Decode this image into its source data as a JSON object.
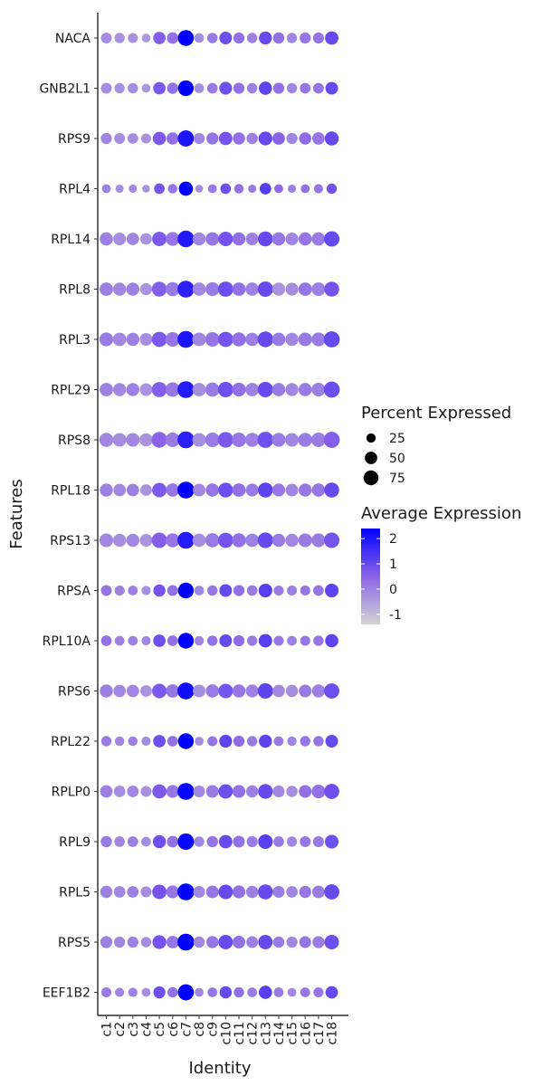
{
  "chart_data": {
    "type": "dot",
    "xlabel": "Identity",
    "ylabel": "Features",
    "clusters": [
      "c1",
      "c2",
      "c3",
      "c4",
      "c5",
      "c6",
      "c7",
      "c8",
      "c9",
      "c10",
      "c11",
      "c12",
      "c13",
      "c14",
      "c15",
      "c16",
      "c17",
      "c18"
    ],
    "features": [
      "NACA",
      "GNB2L1",
      "RPS9",
      "RPL4",
      "RPL14",
      "RPL8",
      "RPL3",
      "RPL29",
      "RPS8",
      "RPL18",
      "RPS13",
      "RPSA",
      "RPL10A",
      "RPS6",
      "RPL22",
      "RPLP0",
      "RPL9",
      "RPL5",
      "RPS5",
      "EEF1B2"
    ],
    "size_legend": {
      "title": "Percent Expressed",
      "values": [
        25,
        50,
        75
      ]
    },
    "color_legend": {
      "title": "Average Expression",
      "ticks": [
        -1,
        0,
        1,
        2
      ],
      "range": [
        -1.4,
        2.4
      ],
      "low_color": "#d3d3d3",
      "high_color": "#0000ff"
    },
    "pct_expressed": [
      [
        36,
        32,
        30,
        22,
        50,
        42,
        88,
        27,
        33,
        52,
        38,
        32,
        55,
        40,
        32,
        38,
        38,
        60
      ],
      [
        36,
        32,
        32,
        22,
        50,
        40,
        85,
        28,
        34,
        54,
        38,
        32,
        58,
        38,
        32,
        35,
        35,
        52
      ],
      [
        38,
        36,
        35,
        30,
        58,
        48,
        92,
        38,
        46,
        60,
        48,
        40,
        64,
        50,
        38,
        48,
        50,
        65
      ],
      [
        22,
        18,
        18,
        16,
        34,
        26,
        68,
        16,
        22,
        34,
        26,
        18,
        42,
        22,
        18,
        22,
        24,
        32
      ],
      [
        58,
        52,
        50,
        42,
        72,
        64,
        98,
        56,
        60,
        72,
        56,
        52,
        76,
        58,
        52,
        58,
        60,
        82
      ],
      [
        60,
        56,
        56,
        46,
        76,
        66,
        100,
        58,
        64,
        80,
        60,
        58,
        82,
        56,
        54,
        60,
        62,
        76
      ],
      [
        64,
        60,
        56,
        52,
        80,
        70,
        100,
        62,
        70,
        80,
        66,
        60,
        86,
        60,
        56,
        62,
        64,
        90
      ],
      [
        60,
        56,
        56,
        52,
        80,
        70,
        100,
        60,
        68,
        82,
        64,
        60,
        82,
        58,
        56,
        58,
        62,
        90
      ],
      [
        66,
        62,
        62,
        56,
        86,
        72,
        100,
        62,
        72,
        84,
        70,
        66,
        90,
        64,
        62,
        66,
        70,
        90
      ],
      [
        56,
        50,
        50,
        42,
        72,
        58,
        100,
        52,
        58,
        74,
        60,
        54,
        76,
        54,
        52,
        56,
        58,
        76
      ],
      [
        62,
        56,
        56,
        52,
        82,
        66,
        100,
        58,
        68,
        80,
        66,
        60,
        84,
        56,
        56,
        62,
        64,
        82
      ],
      [
        36,
        30,
        28,
        24,
        48,
        36,
        86,
        28,
        32,
        52,
        38,
        34,
        62,
        30,
        30,
        30,
        34,
        62
      ],
      [
        34,
        28,
        28,
        24,
        50,
        34,
        86,
        26,
        32,
        52,
        38,
        32,
        60,
        30,
        28,
        30,
        32,
        58
      ],
      [
        56,
        50,
        50,
        42,
        72,
        60,
        100,
        52,
        58,
        72,
        56,
        54,
        82,
        50,
        48,
        52,
        56,
        80
      ],
      [
        32,
        26,
        26,
        24,
        50,
        34,
        86,
        22,
        30,
        54,
        38,
        32,
        56,
        28,
        26,
        32,
        32,
        52
      ],
      [
        50,
        42,
        42,
        36,
        68,
        54,
        100,
        44,
        52,
        70,
        54,
        48,
        74,
        44,
        40,
        52,
        62,
        78
      ],
      [
        40,
        34,
        34,
        28,
        56,
        42,
        94,
        32,
        40,
        60,
        44,
        38,
        72,
        34,
        32,
        36,
        38,
        62
      ],
      [
        48,
        42,
        42,
        36,
        70,
        54,
        100,
        44,
        50,
        72,
        54,
        48,
        76,
        44,
        42,
        46,
        50,
        78
      ],
      [
        46,
        38,
        38,
        32,
        64,
        50,
        100,
        40,
        48,
        70,
        52,
        44,
        70,
        40,
        38,
        44,
        46,
        72
      ],
      [
        30,
        24,
        24,
        22,
        46,
        32,
        90,
        22,
        28,
        48,
        32,
        28,
        58,
        28,
        22,
        28,
        30,
        50
      ]
    ],
    "avg_expression": [
      [
        -0.2,
        -0.3,
        -0.3,
        -0.4,
        0.6,
        0.3,
        2.4,
        -0.2,
        0.1,
        0.9,
        0.3,
        0.0,
        1.0,
        0.3,
        -0.1,
        0.2,
        0.2,
        1.0
      ],
      [
        -0.2,
        -0.3,
        -0.2,
        -0.4,
        0.7,
        0.3,
        2.4,
        -0.2,
        0.1,
        0.9,
        0.3,
        0.0,
        1.1,
        0.3,
        -0.1,
        0.2,
        0.2,
        1.0
      ],
      [
        -0.1,
        -0.2,
        -0.2,
        -0.3,
        0.7,
        0.3,
        2.0,
        -0.1,
        0.2,
        0.8,
        0.3,
        0.0,
        1.0,
        0.5,
        -0.1,
        0.4,
        0.2,
        1.0
      ],
      [
        0.0,
        -0.2,
        -0.1,
        -0.3,
        0.8,
        0.2,
        2.4,
        -0.2,
        0.1,
        0.9,
        0.3,
        0.1,
        1.2,
        0.4,
        0.0,
        0.3,
        0.2,
        0.8
      ],
      [
        0.0,
        -0.2,
        -0.1,
        -0.3,
        0.7,
        0.2,
        1.9,
        -0.1,
        0.2,
        0.8,
        0.3,
        0.0,
        1.0,
        0.2,
        -0.1,
        0.2,
        0.1,
        1.0
      ],
      [
        0.0,
        -0.1,
        0.0,
        -0.3,
        0.6,
        0.1,
        1.8,
        -0.1,
        0.1,
        0.9,
        0.3,
        0.0,
        1.0,
        -0.3,
        -0.2,
        0.2,
        0.0,
        0.8
      ],
      [
        0.1,
        -0.1,
        0.0,
        -0.2,
        0.7,
        0.2,
        2.0,
        -0.1,
        0.2,
        0.8,
        0.3,
        0.0,
        1.0,
        0.1,
        -0.1,
        0.1,
        0.1,
        1.0
      ],
      [
        0.0,
        -0.1,
        0.0,
        -0.3,
        0.6,
        0.2,
        1.9,
        -0.2,
        0.1,
        0.9,
        0.3,
        0.0,
        1.0,
        0.1,
        -0.1,
        0.1,
        0.0,
        0.9
      ],
      [
        -0.1,
        -0.2,
        -0.1,
        -0.3,
        0.5,
        0.1,
        1.8,
        -0.2,
        0.1,
        0.7,
        0.2,
        0.0,
        0.9,
        0.1,
        -0.1,
        0.1,
        0.1,
        0.6
      ],
      [
        0.0,
        -0.1,
        0.0,
        -0.3,
        0.7,
        0.2,
        2.4,
        -0.1,
        0.2,
        0.9,
        0.3,
        0.1,
        1.1,
        0.2,
        -0.1,
        0.2,
        0.2,
        1.0
      ],
      [
        -0.1,
        -0.2,
        -0.1,
        -0.3,
        0.6,
        0.2,
        1.9,
        -0.2,
        0.1,
        0.8,
        0.3,
        0.0,
        1.0,
        0.1,
        -0.1,
        0.1,
        0.1,
        0.8
      ],
      [
        0.2,
        0.0,
        0.0,
        -0.2,
        0.8,
        0.3,
        2.4,
        -0.1,
        0.2,
        1.0,
        0.3,
        0.1,
        1.2,
        0.1,
        0.0,
        0.2,
        0.2,
        1.1
      ],
      [
        0.3,
        0.0,
        0.0,
        -0.1,
        0.9,
        0.3,
        2.4,
        -0.1,
        0.3,
        1.0,
        0.4,
        0.1,
        1.2,
        0.2,
        0.0,
        0.2,
        0.2,
        1.1
      ],
      [
        0.0,
        -0.1,
        -0.1,
        -0.3,
        0.7,
        0.2,
        2.2,
        -0.2,
        0.1,
        0.8,
        0.2,
        0.0,
        1.1,
        -0.1,
        -0.2,
        0.1,
        0.0,
        0.9
      ],
      [
        0.1,
        -0.1,
        0.0,
        -0.2,
        0.9,
        0.3,
        2.4,
        -0.2,
        0.2,
        1.1,
        0.4,
        0.1,
        1.1,
        0.1,
        -0.1,
        0.2,
        0.2,
        1.0
      ],
      [
        0.0,
        -0.2,
        -0.1,
        -0.3,
        0.7,
        0.2,
        2.3,
        -0.1,
        0.1,
        0.9,
        0.3,
        0.0,
        1.0,
        -0.1,
        -0.2,
        0.3,
        0.3,
        0.9
      ],
      [
        0.1,
        -0.1,
        0.0,
        -0.2,
        0.9,
        0.3,
        2.3,
        -0.1,
        0.2,
        1.0,
        0.3,
        0.1,
        1.2,
        0.1,
        -0.1,
        0.2,
        0.1,
        0.9
      ],
      [
        0.0,
        -0.1,
        0.0,
        -0.2,
        0.8,
        0.2,
        2.4,
        -0.1,
        0.2,
        1.0,
        0.3,
        0.0,
        1.0,
        0.1,
        -0.1,
        0.2,
        0.1,
        1.0
      ],
      [
        0.0,
        -0.1,
        0.0,
        -0.2,
        0.8,
        0.2,
        2.4,
        -0.1,
        0.2,
        1.0,
        0.3,
        0.0,
        1.0,
        0.1,
        -0.1,
        0.2,
        0.1,
        0.9
      ],
      [
        0.1,
        -0.1,
        0.0,
        -0.2,
        0.9,
        0.3,
        2.4,
        -0.1,
        0.2,
        1.0,
        0.3,
        0.1,
        1.2,
        0.1,
        -0.1,
        0.2,
        0.2,
        1.0
      ]
    ]
  }
}
